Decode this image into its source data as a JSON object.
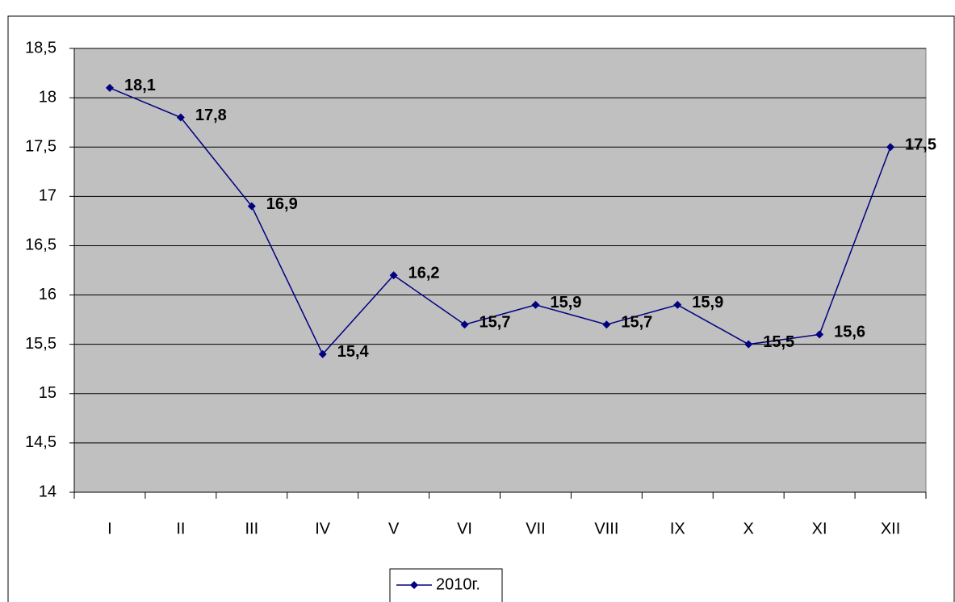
{
  "chart_data": {
    "type": "line",
    "categories": [
      "I",
      "II",
      "III",
      "IV",
      "V",
      "VI",
      "VII",
      "VIII",
      "IX",
      "X",
      "XI",
      "XII"
    ],
    "series": [
      {
        "name": "2010г.",
        "color": "#000080",
        "values": [
          18.1,
          17.8,
          16.9,
          15.4,
          16.2,
          15.7,
          15.9,
          15.7,
          15.9,
          15.5,
          15.6,
          17.5
        ],
        "value_labels": [
          "18,1",
          "17,8",
          "16,9",
          "15,4",
          "16,2",
          "15,7",
          "15,9",
          "15,7",
          "15,9",
          "15,5",
          "15,6",
          "17,5"
        ]
      }
    ],
    "ylim": [
      14,
      18.5
    ],
    "yticks": [
      14,
      {
        "value": 14.5,
        "label": "14,5"
      },
      15,
      {
        "value": 15.5,
        "label": "15,5"
      },
      16,
      {
        "value": 16.5,
        "label": "16,5"
      },
      17,
      {
        "value": 17.5,
        "label": "17,5"
      },
      18,
      {
        "value": 18.5,
        "label": "18,5"
      }
    ],
    "grid": true,
    "plot_background": "#c0c0c0",
    "legend": "bottom"
  }
}
